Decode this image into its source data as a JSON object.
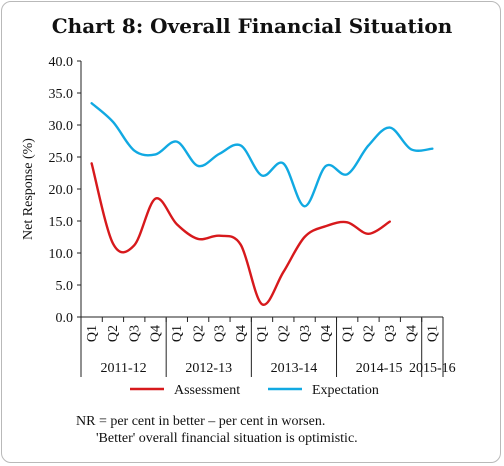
{
  "chart_data": {
    "type": "line",
    "title": "Chart 8: Overall Financial Situation",
    "ylabel": "Net Response (%)",
    "xlabel": "",
    "ylim": [
      0,
      40
    ],
    "yticks": [
      "0.0",
      "5.0",
      "10.0",
      "15.0",
      "20.0",
      "25.0",
      "30.0",
      "35.0",
      "40.0"
    ],
    "x": [
      "Q1",
      "Q2",
      "Q3",
      "Q4",
      "Q1",
      "Q2",
      "Q3",
      "Q4",
      "Q1",
      "Q2",
      "Q3",
      "Q4",
      "Q1",
      "Q2",
      "Q3",
      "Q4",
      "Q1"
    ],
    "year_groups": [
      {
        "label": "2011-12",
        "count": 4
      },
      {
        "label": "2012-13",
        "count": 4
      },
      {
        "label": "2013-14",
        "count": 4
      },
      {
        "label": "2014-15",
        "count": 4
      },
      {
        "label": "2015-16",
        "count": 1
      }
    ],
    "series": [
      {
        "name": "Assessment",
        "color": "#d7191c",
        "values": [
          24.0,
          11.5,
          11.2,
          18.5,
          14.5,
          12.2,
          12.7,
          11.3,
          2.0,
          7.0,
          12.5,
          14.2,
          14.8,
          13.0,
          14.9,
          null,
          null
        ]
      },
      {
        "name": "Expectation",
        "color": "#11a9e2",
        "values": [
          33.4,
          30.5,
          26.0,
          25.4,
          27.4,
          23.6,
          25.5,
          26.8,
          22.1,
          24.0,
          17.3,
          23.6,
          22.3,
          26.8,
          29.6,
          26.2,
          26.3
        ]
      }
    ],
    "grid": false,
    "legend_position": "bottom"
  },
  "footnotes": {
    "line1": "NR = per cent in better – per cent in worsen.",
    "line2": "'Better' overall financial situation is optimistic."
  }
}
